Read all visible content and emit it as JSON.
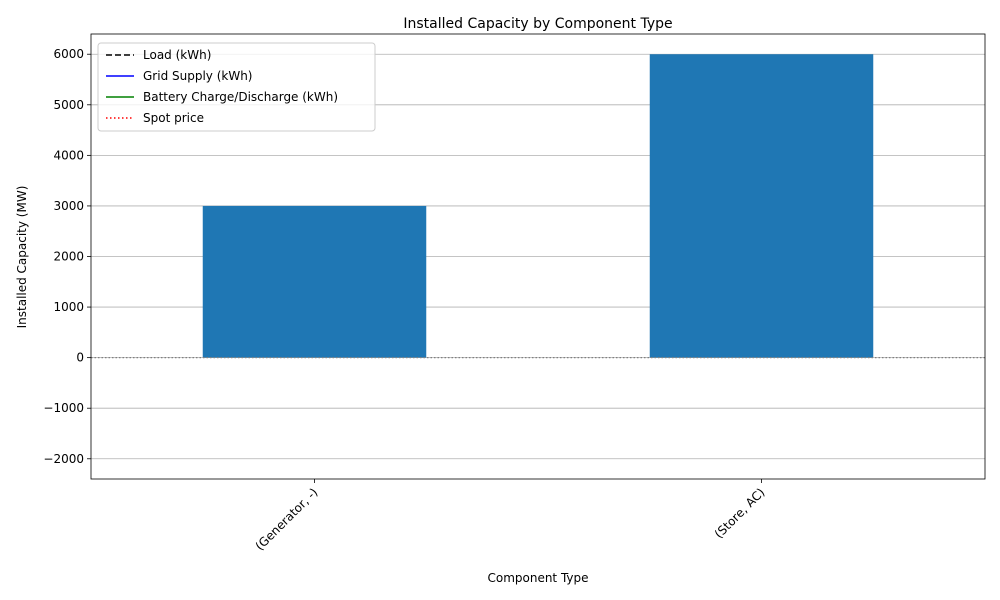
{
  "chart_data": {
    "type": "bar",
    "title": "Installed Capacity by Component Type",
    "xlabel": "Component Type",
    "ylabel": "Installed Capacity (MW)",
    "categories": [
      "(Generator, -)",
      "(Store, AC)"
    ],
    "values": [
      3000,
      6000
    ],
    "bar_color": "#1f77b4",
    "ylim": [
      -2400,
      6400
    ],
    "yticks": [
      -2000,
      -1000,
      0,
      1000,
      2000,
      3000,
      4000,
      5000,
      6000
    ],
    "ytick_labels": [
      "−2000",
      "−1000",
      "0",
      "1000",
      "2000",
      "3000",
      "4000",
      "5000",
      "6000"
    ],
    "grid": "y",
    "zero_line": {
      "style": "dotted",
      "color": "#808080"
    },
    "legend": {
      "placement": "top-left",
      "entries": [
        {
          "label": "Load (kWh)",
          "color": "#000000",
          "style": "dashed"
        },
        {
          "label": "Grid Supply (kWh)",
          "color": "#0000ff",
          "style": "solid"
        },
        {
          "label": "Battery Charge/Discharge (kWh)",
          "color": "#008000",
          "style": "solid"
        },
        {
          "label": "Spot price",
          "color": "#ff0000",
          "style": "dotted"
        }
      ]
    }
  }
}
